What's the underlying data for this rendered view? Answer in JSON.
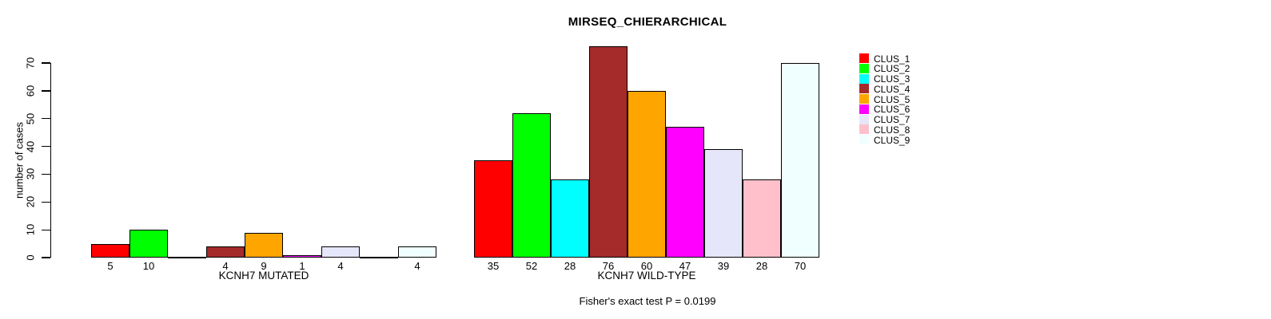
{
  "chart_data": {
    "type": "bar",
    "title": "MIRSEQ_CHIERARCHICAL",
    "ylabel": "number of cases",
    "ylim": [
      0,
      70
    ],
    "yticks": [
      0,
      10,
      20,
      30,
      40,
      50,
      60,
      70
    ],
    "categories": [
      "CLUS_1",
      "CLUS_2",
      "CLUS_3",
      "CLUS_4",
      "CLUS_5",
      "CLUS_6",
      "CLUS_7",
      "CLUS_8",
      "CLUS_9"
    ],
    "colors": [
      "#FF0000",
      "#00FF00",
      "#00FFFF",
      "#A52A2A",
      "#FFA500",
      "#FF00FF",
      "#E6E6FA",
      "#FFC0CB",
      "#F0FFFF"
    ],
    "bar_border_color": "#000000",
    "legend_position": "right",
    "grid": false,
    "groups": [
      {
        "label": "KCNH7 MUTATED",
        "values": [
          5,
          10,
          0,
          4,
          9,
          1,
          4,
          0,
          4
        ]
      },
      {
        "label": "KCNH7 WILD-TYPE",
        "values": [
          35,
          52,
          28,
          76,
          60,
          47,
          39,
          28,
          70
        ]
      }
    ],
    "note": "Fisher's exact test P = 0.0199"
  }
}
